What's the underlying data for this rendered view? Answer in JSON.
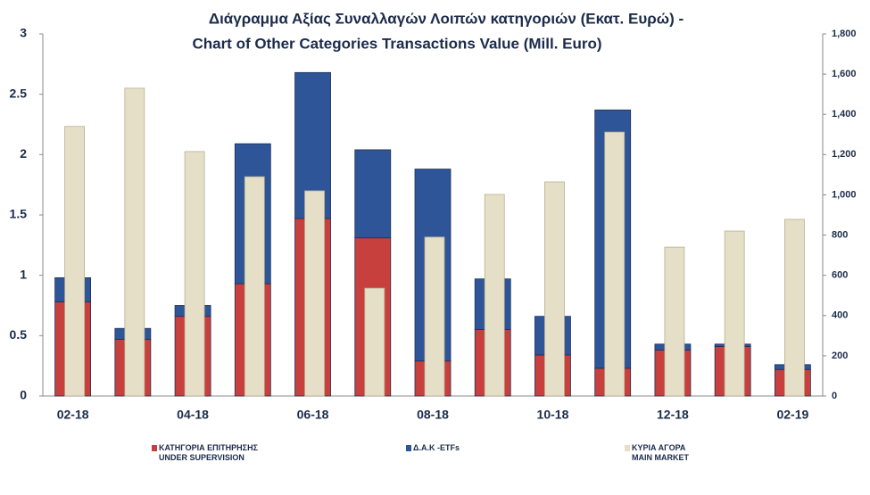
{
  "chart_data": {
    "type": "bar",
    "title": "Διάγραμμα Αξίας Συναλλαγών Λοιπών κατηγοριών (Εκατ.  Ευρώ) -",
    "subtitle": "Chart of Other Categories Transactions Value (Mill. Euro)",
    "categories": [
      "02-18",
      null,
      "04-18",
      null,
      "06-18",
      null,
      "08-18",
      null,
      "10-18",
      null,
      "12-18",
      null,
      "02-19"
    ],
    "stacked": true,
    "series": [
      {
        "name": "ΚΑΤΗΓΟΡΙΑ ΕΠΙΤΗΡΗΣΗΣ\nUNDER SUPERVISION",
        "color": "#c8403d",
        "values": [
          0.78,
          0.47,
          0.66,
          0.93,
          1.47,
          1.31,
          0.29,
          0.55,
          0.34,
          0.23,
          0.38,
          0.41,
          0.22
        ]
      },
      {
        "name": "Δ.Α.Κ -ETFs",
        "color": "#2e5597",
        "values": [
          0.2,
          0.09,
          0.09,
          1.16,
          1.21,
          0.73,
          1.59,
          0.42,
          0.32,
          2.14,
          0.05,
          0.02,
          0.04
        ]
      },
      {
        "name": "ΚΥΡΙΑ ΑΓΟΡΑ\nMAIN MARKET",
        "color": "#e6dfc8",
        "axis": "y2",
        "values": [
          1340,
          1530,
          1215,
          1090,
          1020,
          536,
          790,
          1002,
          1064,
          1312,
          740,
          820,
          878
        ]
      }
    ],
    "ylim": [
      0,
      3
    ],
    "yticks": [
      0,
      0.5,
      1,
      1.5,
      2,
      2.5,
      3
    ],
    "y2lim": [
      0,
      1800
    ],
    "y2ticks": [
      0,
      200,
      400,
      600,
      800,
      {
        "value": 1000,
        "label": "1,000"
      },
      {
        "value": 1200,
        "label": "1,200"
      },
      {
        "value": 1400,
        "label": "1,400"
      },
      {
        "value": 1600,
        "label": "1,600"
      },
      {
        "value": 1800,
        "label": "1,800"
      }
    ],
    "legend": "bottom"
  }
}
